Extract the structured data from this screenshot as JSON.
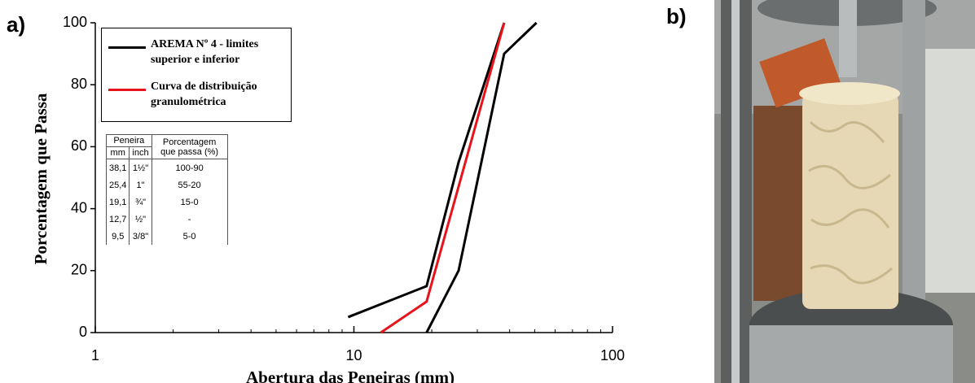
{
  "chart_data": {
    "type": "line",
    "panel_label": "a)",
    "xlabel": "Abertura  das Peneiras (mm)",
    "ylabel": "Porcentagem que Passa",
    "xscale": "log",
    "xlim": [
      1,
      100
    ],
    "xticks": [
      1,
      10,
      100
    ],
    "ylim": [
      0,
      100
    ],
    "yticks": [
      0,
      20,
      40,
      60,
      80,
      100
    ],
    "legend": "upper left",
    "series": [
      {
        "name": "AREMA Nº 4 - limites superior e inferior",
        "color": "#000000",
        "x": [
          9.5,
          19.1,
          25.4,
          38.1
        ],
        "values": [
          5,
          15,
          55,
          100
        ]
      },
      {
        "color": "#000000",
        "x": [
          19.1,
          25.4,
          38.1,
          50.8
        ],
        "values": [
          0,
          20,
          90,
          100
        ]
      },
      {
        "name": "Curva de distribuição granulométrica",
        "color": "#e8141c",
        "x": [
          12.7,
          19.1,
          38.1
        ],
        "values": [
          0,
          10,
          100
        ]
      }
    ],
    "table": {
      "header": [
        "Peneira",
        "Porcentagem que passa (%)"
      ],
      "subheader": [
        "mm",
        "inch"
      ],
      "rows": [
        [
          "38,1",
          "1½\"",
          "100-90"
        ],
        [
          "25,4",
          "1\"",
          "55-20"
        ],
        [
          "19,1",
          "¾\"",
          "15-0"
        ],
        [
          "12,7",
          "½\"",
          "-"
        ],
        [
          "9,5",
          "3/8\"",
          "5-0"
        ]
      ]
    }
  },
  "photo": {
    "label": "b)"
  }
}
